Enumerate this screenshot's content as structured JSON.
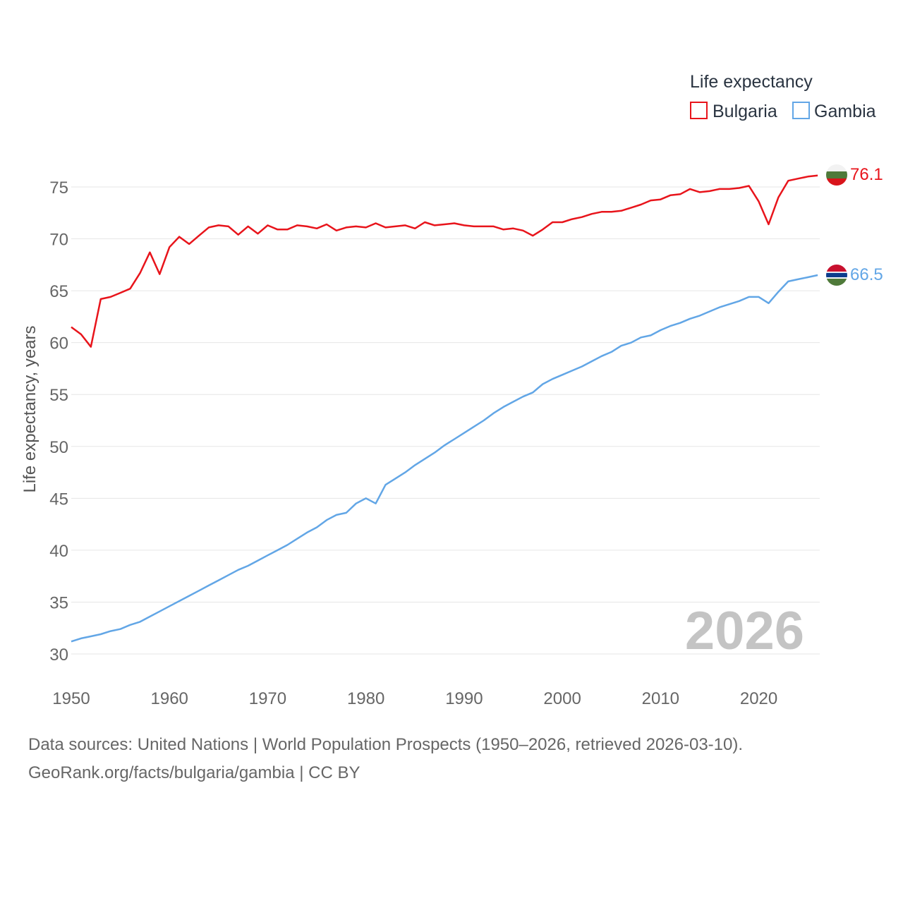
{
  "chart_data": {
    "type": "line",
    "title": "",
    "xlabel": "",
    "ylabel": "Life expectancy, years",
    "xlim": [
      1950,
      2026
    ],
    "ylim": [
      30,
      77
    ],
    "x_ticks": [
      "1950",
      "1960",
      "1970",
      "1980",
      "1990",
      "2000",
      "2010",
      "2020"
    ],
    "y_ticks": [
      "30",
      "35",
      "40",
      "45",
      "50",
      "55",
      "60",
      "65",
      "70",
      "75"
    ],
    "legend_title": "Life expectancy",
    "legend_position": "top-right",
    "current_year": "2026",
    "x": [
      1950,
      1951,
      1952,
      1953,
      1954,
      1955,
      1956,
      1957,
      1958,
      1959,
      1960,
      1961,
      1962,
      1963,
      1964,
      1965,
      1966,
      1967,
      1968,
      1969,
      1970,
      1971,
      1972,
      1973,
      1974,
      1975,
      1976,
      1977,
      1978,
      1979,
      1980,
      1981,
      1982,
      1983,
      1984,
      1985,
      1986,
      1987,
      1988,
      1989,
      1990,
      1991,
      1992,
      1993,
      1994,
      1995,
      1996,
      1997,
      1998,
      1999,
      2000,
      2001,
      2002,
      2003,
      2004,
      2005,
      2006,
      2007,
      2008,
      2009,
      2010,
      2011,
      2012,
      2013,
      2014,
      2015,
      2016,
      2017,
      2018,
      2019,
      2020,
      2021,
      2022,
      2023,
      2024,
      2025,
      2026
    ],
    "series": [
      {
        "name": "Bulgaria",
        "color": "#e8141b",
        "end_label": "76.1",
        "values": [
          61.5,
          60.8,
          59.6,
          64.2,
          64.4,
          64.8,
          65.2,
          66.7,
          68.7,
          66.6,
          69.2,
          70.2,
          69.5,
          70.3,
          71.1,
          71.3,
          71.2,
          70.4,
          71.2,
          70.5,
          71.3,
          70.9,
          70.9,
          71.3,
          71.2,
          71.0,
          71.4,
          70.8,
          71.1,
          71.2,
          71.1,
          71.5,
          71.1,
          71.2,
          71.3,
          71.0,
          71.6,
          71.3,
          71.4,
          71.5,
          71.3,
          71.2,
          71.2,
          71.2,
          70.9,
          71.0,
          70.8,
          70.3,
          70.9,
          71.6,
          71.6,
          71.9,
          72.1,
          72.4,
          72.6,
          72.6,
          72.7,
          73.0,
          73.3,
          73.7,
          73.8,
          74.2,
          74.3,
          74.8,
          74.5,
          74.6,
          74.8,
          74.8,
          74.9,
          75.1,
          73.6,
          71.4,
          74.0,
          75.6,
          75.8,
          76.0,
          76.1
        ]
      },
      {
        "name": "Gambia",
        "color": "#62a6e6",
        "end_label": "66.5",
        "values": [
          31.2,
          31.5,
          31.7,
          31.9,
          32.2,
          32.4,
          32.8,
          33.1,
          33.6,
          34.1,
          34.6,
          35.1,
          35.6,
          36.1,
          36.6,
          37.1,
          37.6,
          38.1,
          38.5,
          39.0,
          39.5,
          40.0,
          40.5,
          41.1,
          41.7,
          42.2,
          42.9,
          43.4,
          43.6,
          44.5,
          45.0,
          44.5,
          46.3,
          46.9,
          47.5,
          48.2,
          48.8,
          49.4,
          50.1,
          50.7,
          51.3,
          51.9,
          52.5,
          53.2,
          53.8,
          54.3,
          54.8,
          55.2,
          56.0,
          56.5,
          56.9,
          57.3,
          57.7,
          58.2,
          58.7,
          59.1,
          59.7,
          60.0,
          60.5,
          60.7,
          61.2,
          61.6,
          61.9,
          62.3,
          62.6,
          63.0,
          63.4,
          63.7,
          64.0,
          64.4,
          64.4,
          63.8,
          64.9,
          65.9,
          66.1,
          66.3,
          66.5
        ]
      }
    ]
  },
  "footer": {
    "sources": "Data sources: United Nations | World Population Prospects (1950–2026, retrieved 2026-03-10).",
    "credit": "GeoRank.org/facts/bulgaria/gambia | CC BY"
  }
}
